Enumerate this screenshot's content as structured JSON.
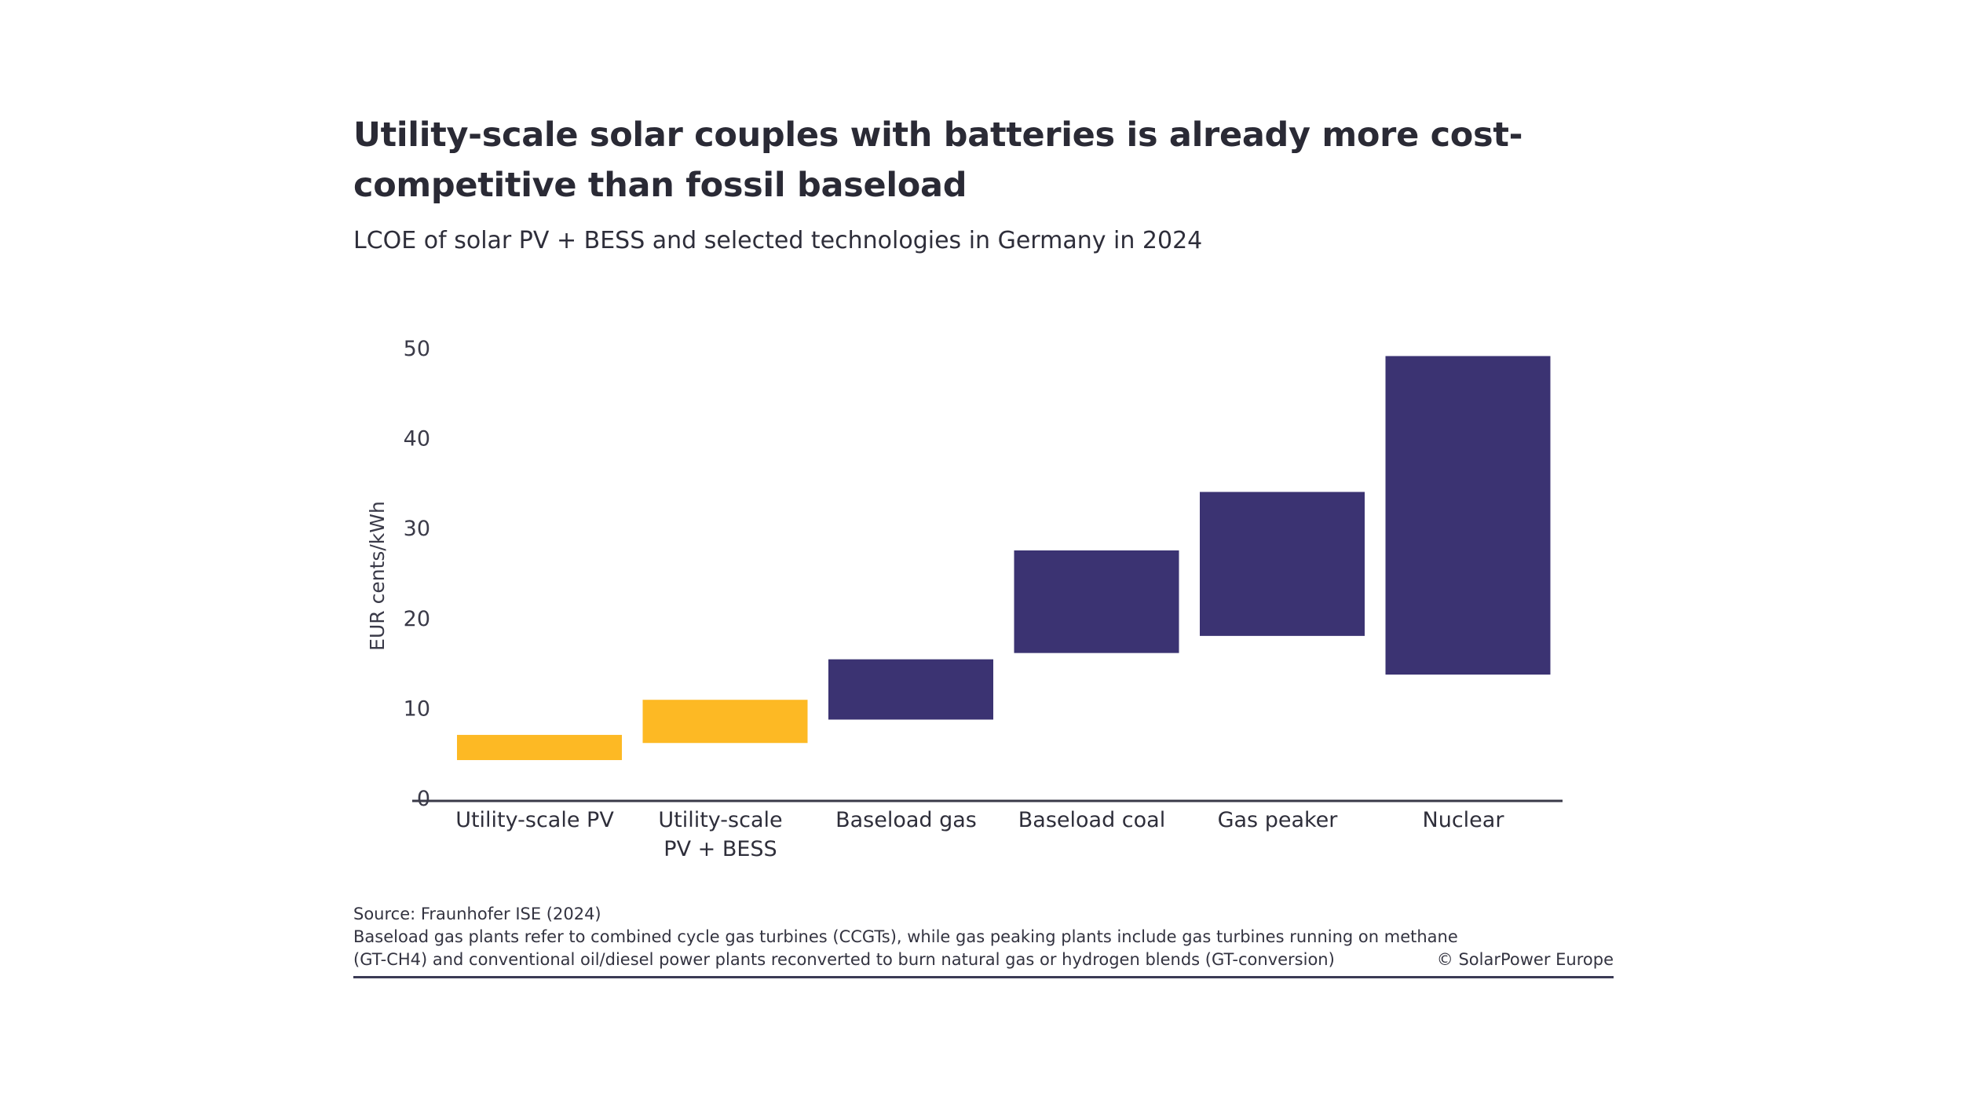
{
  "title": "Utility-scale solar couples with batteries is already more cost-competitive than fossil baseload",
  "subtitle": "LCOE of solar PV + BESS and selected technologies in Germany in 2024",
  "chart_data": {
    "type": "bar",
    "subtype": "floating-range",
    "categories": [
      [
        "Utility-scale PV"
      ],
      [
        "Utility-scale",
        "PV + BESS"
      ],
      [
        "Baseload gas"
      ],
      [
        "Baseload coal"
      ],
      [
        "Gas peaker"
      ],
      [
        "Nuclear"
      ]
    ],
    "ranges": [
      [
        4.1,
        6.9
      ],
      [
        6.0,
        10.8
      ],
      [
        8.6,
        15.3
      ],
      [
        16.0,
        27.4
      ],
      [
        17.9,
        33.9
      ],
      [
        13.6,
        49.0
      ]
    ],
    "colors": [
      "#FDB924",
      "#FDB924",
      "#3B3372",
      "#3B3372",
      "#3B3372",
      "#3B3372"
    ],
    "ylabel": "EUR cents/kWh",
    "xlabel": "",
    "ylim": [
      0,
      50
    ],
    "yticks": [
      0,
      10,
      20,
      30,
      40,
      50
    ],
    "grid": false,
    "legend": "none"
  },
  "source": "Source: Fraunhofer ISE (2024)",
  "note_line1": "Baseload gas plants refer to combined cycle gas turbines (CCGTs), while gas peaking plants include gas turbines running on methane",
  "note_line2": "(GT-CH4) and conventional oil/diesel power plants reconverted to burn natural gas or hydrogen blends (GT-conversion)",
  "copyright": "© SolarPower Europe"
}
